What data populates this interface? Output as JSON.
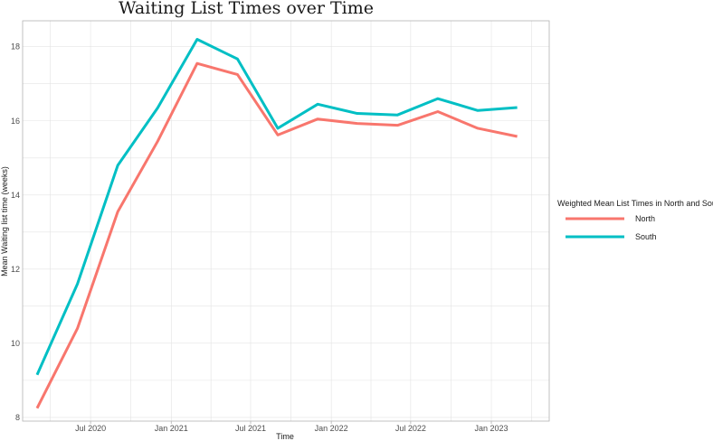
{
  "chart_data": {
    "type": "line",
    "title": "Waiting List Times over Time",
    "xlabel": "Time",
    "ylabel": "Mean Waiting list time (weeks)",
    "x": [
      "2020-03-01",
      "2020-06-01",
      "2020-09-01",
      "2020-12-01",
      "2021-03-01",
      "2021-06-01",
      "2021-09-01",
      "2021-12-01",
      "2022-03-01",
      "2022-06-01",
      "2022-09-01",
      "2022-12-01",
      "2023-03-01"
    ],
    "x_ticks": [
      {
        "date": "2020-07-01",
        "label": "Jul 2020"
      },
      {
        "date": "2021-01-01",
        "label": "Jan 2021"
      },
      {
        "date": "2021-07-01",
        "label": "Jul 2021"
      },
      {
        "date": "2022-01-01",
        "label": "Jan 2022"
      },
      {
        "date": "2022-07-01",
        "label": "Jul 2022"
      },
      {
        "date": "2023-01-01",
        "label": "Jan 2023"
      }
    ],
    "xlim": [
      "2020-01-28",
      "2023-05-13"
    ],
    "ylim": [
      7.9,
      18.7
    ],
    "y_ticks": [
      8,
      10,
      12,
      14,
      16,
      18
    ],
    "grid": true,
    "legend": {
      "title": "Weighted Mean List Times in North and South:",
      "position": "right"
    },
    "series": [
      {
        "name": "North",
        "color": "#F8766D",
        "values": [
          8.25,
          10.4,
          13.55,
          15.45,
          17.55,
          17.25,
          15.62,
          16.05,
          15.93,
          15.88,
          16.25,
          15.8,
          15.58
        ]
      },
      {
        "name": "South",
        "color": "#00BFC4",
        "values": [
          9.15,
          11.6,
          14.8,
          16.35,
          18.2,
          17.67,
          15.8,
          16.45,
          16.2,
          16.16,
          16.6,
          16.28,
          16.36
        ]
      }
    ]
  }
}
